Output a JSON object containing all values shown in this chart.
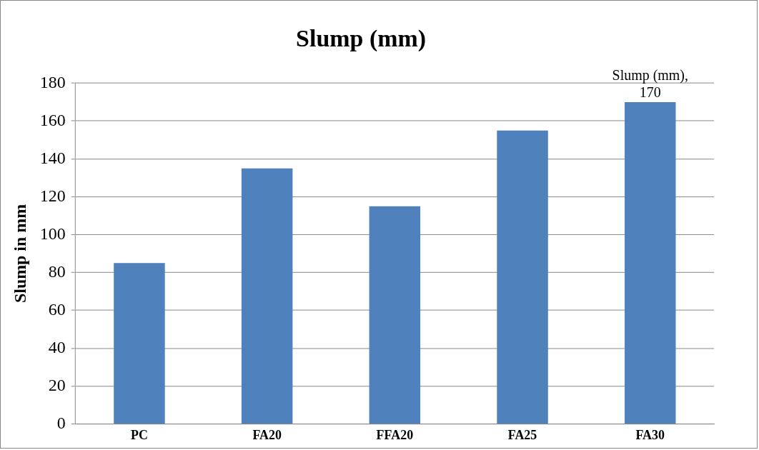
{
  "chart_data": {
    "type": "bar",
    "title": "Slump (mm)",
    "ylabel": "Slump in mm",
    "categories": [
      "PC",
      "FA20",
      "FFA20",
      "FA25",
      "FA30"
    ],
    "values": [
      85,
      135,
      115,
      155,
      170
    ],
    "value_labels": [
      null,
      null,
      null,
      null,
      "Slump (mm), 170"
    ],
    "color": "#4f81bd",
    "ylim": [
      0,
      180
    ],
    "yticks": [
      0,
      20,
      40,
      60,
      80,
      100,
      120,
      140,
      160,
      180
    ],
    "grid": "y",
    "legend": false
  }
}
